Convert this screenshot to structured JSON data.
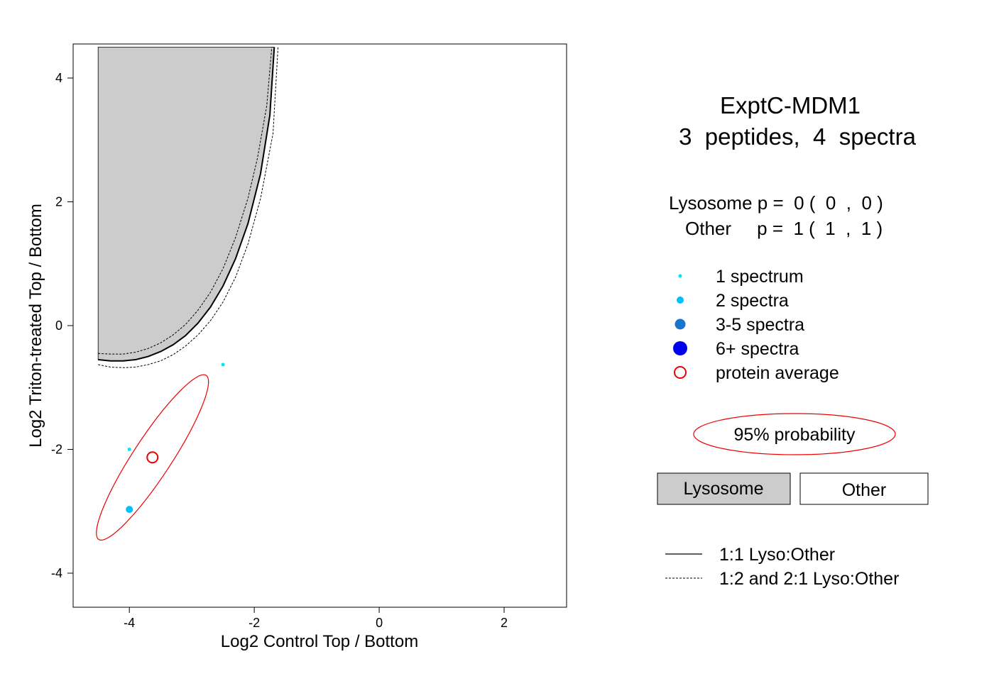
{
  "chart_data": {
    "type": "scatter",
    "title": "ExptC-MDM1",
    "subtitle": "3  peptides,  4  spectra",
    "xlabel": "Log2 Control Top / Bottom",
    "ylabel": "Log2 Triton-treated Top / Bottom",
    "xlim": [
      -4.9,
      3.0
    ],
    "ylim": [
      -4.55,
      4.55
    ],
    "x_ticks": [
      -4,
      -2,
      0,
      2
    ],
    "y_ticks": [
      -4,
      -2,
      0,
      2,
      4
    ],
    "grid": false,
    "probabilities": {
      "lysosome_line": "Lysosome p =  0 (  0  ,  0 )",
      "other_line": "Other     p =  1 (  1  ,  1 )"
    },
    "points": [
      {
        "x": -2.5,
        "y": -0.63,
        "spectra": 1,
        "class": "1 spectrum",
        "color": "#00E5EE"
      },
      {
        "x": -4.0,
        "y": -2.0,
        "spectra": 1,
        "class": "1 spectrum",
        "color": "#00E5EE"
      },
      {
        "x": -4.0,
        "y": -2.97,
        "spectra": 2,
        "class": "2 spectra",
        "color": "#00BFFF"
      }
    ],
    "protein_average": {
      "x": -3.63,
      "y": -2.13,
      "color": "#EE0000"
    },
    "ellipse_95": {
      "center": [
        -3.63,
        -2.13
      ],
      "axis_endpoints": [
        [
          -2.76,
          -0.82
        ],
        [
          -4.48,
          -3.47
        ]
      ],
      "color": "#EE0000"
    },
    "lysosome_region": {
      "fill": "#CCCCCC",
      "boundary": [
        [
          -4.5,
          -0.55
        ],
        [
          -4.3,
          -0.57
        ],
        [
          -4.1,
          -0.57
        ],
        [
          -3.9,
          -0.55
        ],
        [
          -3.7,
          -0.5
        ],
        [
          -3.5,
          -0.42
        ],
        [
          -3.3,
          -0.31
        ],
        [
          -3.1,
          -0.16
        ],
        [
          -2.9,
          0.04
        ],
        [
          -2.7,
          0.3
        ],
        [
          -2.5,
          0.64
        ],
        [
          -2.3,
          1.08
        ],
        [
          -2.1,
          1.65
        ],
        [
          -1.9,
          2.45
        ],
        [
          -1.75,
          3.4
        ],
        [
          -1.68,
          4.5
        ]
      ],
      "dash_inner": [
        [
          -4.5,
          -0.45
        ],
        [
          -4.3,
          -0.46
        ],
        [
          -4.1,
          -0.46
        ],
        [
          -3.9,
          -0.43
        ],
        [
          -3.7,
          -0.37
        ],
        [
          -3.5,
          -0.28
        ],
        [
          -3.3,
          -0.15
        ],
        [
          -3.1,
          0.02
        ],
        [
          -2.9,
          0.25
        ],
        [
          -2.7,
          0.54
        ],
        [
          -2.5,
          0.92
        ],
        [
          -2.3,
          1.42
        ],
        [
          -2.1,
          2.06
        ],
        [
          -1.95,
          2.7
        ],
        [
          -1.8,
          3.55
        ],
        [
          -1.72,
          4.5
        ]
      ],
      "dash_outer": [
        [
          -4.5,
          -0.63
        ],
        [
          -4.3,
          -0.67
        ],
        [
          -4.1,
          -0.68
        ],
        [
          -3.9,
          -0.67
        ],
        [
          -3.7,
          -0.63
        ],
        [
          -3.5,
          -0.57
        ],
        [
          -3.3,
          -0.47
        ],
        [
          -3.1,
          -0.33
        ],
        [
          -2.9,
          -0.15
        ],
        [
          -2.7,
          0.08
        ],
        [
          -2.5,
          0.38
        ],
        [
          -2.3,
          0.78
        ],
        [
          -2.1,
          1.32
        ],
        [
          -1.9,
          2.05
        ],
        [
          -1.7,
          3.1
        ],
        [
          -1.62,
          4.5
        ]
      ]
    },
    "legend": [
      {
        "label": "1 spectrum",
        "marker": "dot",
        "size": 2.5,
        "color": "#00E5EE"
      },
      {
        "label": "2 spectra",
        "marker": "dot",
        "size": 5,
        "color": "#00BFFF"
      },
      {
        "label": "3-5 spectra",
        "marker": "dot",
        "size": 7.5,
        "color": "#1874CD"
      },
      {
        "label": "6+ spectra",
        "marker": "dot",
        "size": 10,
        "color": "#0000EE"
      },
      {
        "label": "protein average",
        "marker": "ring",
        "size": 8,
        "color": "#EE0000"
      }
    ],
    "ellipse_legend_label": "95% probability",
    "region_boxes": {
      "lysosome": "Lysosome",
      "other": "Other",
      "lysosome_fill": "#CCCCCC"
    },
    "line_legend": [
      {
        "label": "1:1 Lyso:Other",
        "style": "solid"
      },
      {
        "label": "1:2 and 2:1 Lyso:Other",
        "style": "dashed"
      }
    ]
  }
}
